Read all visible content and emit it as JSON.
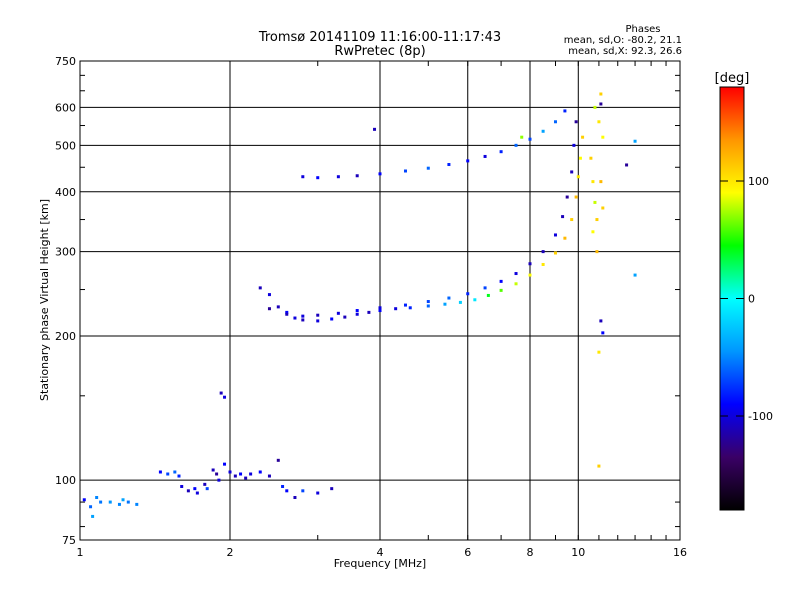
{
  "chart_data": {
    "type": "scatter",
    "title": "Tromsø 20141109 11:16:00-11:17:43",
    "subtitle": "RwPretec (8p)",
    "xlabel": "Frequency [MHz]",
    "ylabel": "Stationary phase Virtual Height [km]",
    "x_scale": "log",
    "y_scale": "log",
    "xlim": [
      1,
      16
    ],
    "ylim": [
      75,
      750
    ],
    "x_ticks": [
      1,
      2,
      4,
      6,
      8,
      10,
      16
    ],
    "y_ticks": [
      75,
      100,
      200,
      300,
      400,
      500,
      600,
      750
    ],
    "grid": true,
    "info": {
      "heading": "Phases",
      "line_o": "mean, sd,O: -80.2, 21.1",
      "line_x": "mean, sd,X:  92.3, 26.6"
    },
    "colorbar": {
      "label": "[deg]",
      "range": [
        -180,
        180
      ],
      "ticks": [
        100,
        0,
        -100
      ],
      "colors": [
        "#000000",
        "#3a0066",
        "#0000ff",
        "#0096ff",
        "#00ffff",
        "#00ff00",
        "#ffff00",
        "#ff9600",
        "#ff0000"
      ]
    },
    "series": [
      {
        "points": [
          [
            1.02,
            91,
            -90
          ],
          [
            1.05,
            88,
            -60
          ],
          [
            1.08,
            92,
            -50
          ],
          [
            1.1,
            90,
            -55
          ],
          [
            1.15,
            90,
            -45
          ],
          [
            1.2,
            89,
            -50
          ],
          [
            1.22,
            91,
            -40
          ],
          [
            1.25,
            90,
            -55
          ],
          [
            1.3,
            89,
            -50
          ],
          [
            1.06,
            84,
            -40
          ],
          [
            1.45,
            104,
            -90
          ],
          [
            1.5,
            103,
            -70
          ],
          [
            1.55,
            104,
            -60
          ],
          [
            1.58,
            102,
            -80
          ],
          [
            1.6,
            97,
            -100
          ],
          [
            1.65,
            95,
            -110
          ],
          [
            1.7,
            96,
            -90
          ],
          [
            1.72,
            94,
            -100
          ],
          [
            1.78,
            98,
            -110
          ],
          [
            1.8,
            96,
            -70
          ],
          [
            1.85,
            105,
            -110
          ],
          [
            1.88,
            103,
            -120
          ],
          [
            1.9,
            100,
            -100
          ],
          [
            1.92,
            152,
            -110
          ],
          [
            1.95,
            149,
            -100
          ],
          [
            1.95,
            108,
            -90
          ],
          [
            2.0,
            104,
            -100
          ],
          [
            2.05,
            102,
            -110
          ],
          [
            2.1,
            103,
            -90
          ],
          [
            2.15,
            101,
            -110
          ],
          [
            2.2,
            103,
            -100
          ],
          [
            2.3,
            104,
            -90
          ],
          [
            2.4,
            102,
            -110
          ],
          [
            2.5,
            110,
            -120
          ],
          [
            2.55,
            97,
            -80
          ],
          [
            2.6,
            95,
            -90
          ],
          [
            2.7,
            92,
            -110
          ],
          [
            2.8,
            95,
            -70
          ],
          [
            3.0,
            94,
            -100
          ],
          [
            3.2,
            96,
            -110
          ],
          [
            2.3,
            252,
            -110
          ],
          [
            2.4,
            244,
            -100
          ],
          [
            2.5,
            230,
            -110
          ],
          [
            2.6,
            224,
            -90
          ],
          [
            2.7,
            218,
            -100
          ],
          [
            2.8,
            216,
            -110
          ],
          [
            3.0,
            215,
            -100
          ],
          [
            3.2,
            217,
            -90
          ],
          [
            3.4,
            219,
            -110
          ],
          [
            3.6,
            222,
            -100
          ],
          [
            3.8,
            224,
            -110
          ],
          [
            4.0,
            226,
            -90
          ],
          [
            4.3,
            228,
            -100
          ],
          [
            4.6,
            229,
            -80
          ],
          [
            5.0,
            231,
            -60
          ],
          [
            5.4,
            233,
            -40
          ],
          [
            5.8,
            235,
            -20
          ],
          [
            6.2,
            238,
            -10
          ],
          [
            6.6,
            243,
            40
          ],
          [
            7.0,
            249,
            60
          ],
          [
            7.5,
            257,
            80
          ],
          [
            8.0,
            268,
            90
          ],
          [
            8.5,
            282,
            100
          ],
          [
            9.0,
            298,
            110
          ],
          [
            9.4,
            320,
            120
          ],
          [
            9.7,
            350,
            110
          ],
          [
            9.9,
            390,
            120
          ],
          [
            10.0,
            430,
            100
          ],
          [
            10.1,
            470,
            90
          ],
          [
            10.2,
            520,
            110
          ],
          [
            2.4,
            228,
            -120
          ],
          [
            2.6,
            222,
            -110
          ],
          [
            2.8,
            220,
            -100
          ],
          [
            3.0,
            221,
            -110
          ],
          [
            3.3,
            223,
            -100
          ],
          [
            3.6,
            226,
            -90
          ],
          [
            4.0,
            229,
            -100
          ],
          [
            4.5,
            232,
            -80
          ],
          [
            5.0,
            236,
            -70
          ],
          [
            5.5,
            240,
            -60
          ],
          [
            6.0,
            245,
            -80
          ],
          [
            6.5,
            252,
            -70
          ],
          [
            7.0,
            260,
            -90
          ],
          [
            7.5,
            270,
            -100
          ],
          [
            8.0,
            283,
            -110
          ],
          [
            8.5,
            300,
            -110
          ],
          [
            9.0,
            325,
            -100
          ],
          [
            9.3,
            355,
            -110
          ],
          [
            9.5,
            390,
            -120
          ],
          [
            9.7,
            440,
            -110
          ],
          [
            9.8,
            500,
            -100
          ],
          [
            9.9,
            560,
            -120
          ],
          [
            2.8,
            430,
            -100
          ],
          [
            3.0,
            428,
            -90
          ],
          [
            3.3,
            430,
            -100
          ],
          [
            3.6,
            432,
            -110
          ],
          [
            4.0,
            436,
            -90
          ],
          [
            4.5,
            442,
            -70
          ],
          [
            5.0,
            448,
            -60
          ],
          [
            5.5,
            456,
            -80
          ],
          [
            6.0,
            464,
            -90
          ],
          [
            6.5,
            474,
            -100
          ],
          [
            7.0,
            485,
            -80
          ],
          [
            7.5,
            500,
            -60
          ],
          [
            8.0,
            515,
            -70
          ],
          [
            8.5,
            535,
            -40
          ],
          [
            9.0,
            560,
            -60
          ],
          [
            9.4,
            590,
            -80
          ],
          [
            3.9,
            540,
            -110
          ],
          [
            7.7,
            520,
            70
          ],
          [
            10.6,
            470,
            110
          ],
          [
            10.7,
            420,
            100
          ],
          [
            10.8,
            380,
            80
          ],
          [
            10.9,
            350,
            110
          ],
          [
            10.7,
            330,
            90
          ],
          [
            10.9,
            300,
            120
          ],
          [
            10.8,
            600,
            80
          ],
          [
            11.1,
            640,
            110
          ],
          [
            11.0,
            560,
            100
          ],
          [
            11.2,
            520,
            90
          ],
          [
            11.1,
            420,
            120
          ],
          [
            11.2,
            370,
            110
          ],
          [
            11.1,
            610,
            -120
          ],
          [
            11.1,
            215,
            -110
          ],
          [
            11.2,
            203,
            -90
          ],
          [
            11.0,
            185,
            100
          ],
          [
            11.0,
            107,
            110
          ],
          [
            12.5,
            455,
            -120
          ],
          [
            13.0,
            510,
            -40
          ],
          [
            13.0,
            268,
            -40
          ]
        ]
      }
    ]
  }
}
